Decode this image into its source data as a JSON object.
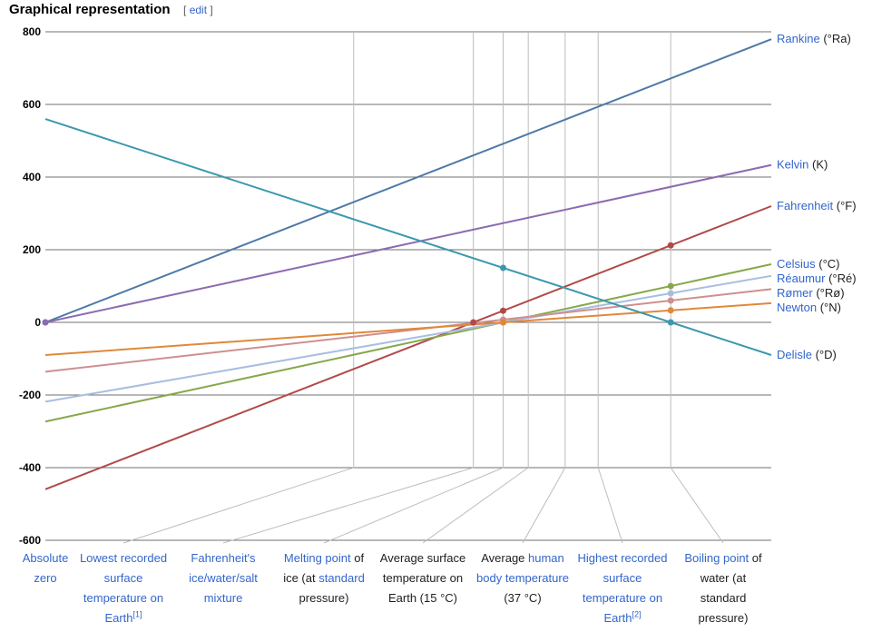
{
  "heading": {
    "title": "Graphical representation",
    "edit_open": "[",
    "edit_label": "edit",
    "edit_close": "]"
  },
  "chart_data": {
    "type": "line",
    "title": "Graphical representation",
    "xlabel": "",
    "ylabel": "",
    "ylim": [
      -600,
      800
    ],
    "yticks": [
      "800",
      "600",
      "400",
      "200",
      "0",
      "-200",
      "-400",
      "-600"
    ],
    "ytick_values": [
      800,
      600,
      400,
      200,
      0,
      -200,
      -400,
      -600
    ],
    "grid": true,
    "x_domain_celsius": [
      -273.15,
      160
    ],
    "categories": [
      {
        "celsius": -273.15,
        "parts": [
          {
            "t": "Absolute"
          },
          {
            "t": " zero"
          }
        ]
      },
      {
        "celsius": -89.2,
        "parts": [
          {
            "t": "Lowest recorded surface temperature on Earth"
          },
          {
            "t": "[1]",
            "sup": true
          }
        ]
      },
      {
        "celsius": -17.78,
        "parts": [
          {
            "t": "Fahrenheit's ice/water/salt mixture",
            "link": true
          }
        ]
      },
      {
        "celsius": 0,
        "parts": [
          {
            "t": "Melting point",
            "link": true
          },
          {
            "t": " of ice (at "
          },
          {
            "t": "standard",
            "link": true
          },
          {
            "t": " pressure)"
          }
        ]
      },
      {
        "celsius": 15,
        "parts": [
          {
            "t": "Average surface temperature on Earth (15 °C)"
          }
        ]
      },
      {
        "celsius": 37,
        "parts": [
          {
            "t": "Average "
          },
          {
            "t": "human body temperature",
            "link": true
          },
          {
            "t": " (37 °C)"
          }
        ]
      },
      {
        "celsius": 56.7,
        "parts": [
          {
            "t": "Highest recorded surface temperature on Earth",
            "link": true
          },
          {
            "t": "[2]",
            "sup": true
          }
        ]
      },
      {
        "celsius": 100,
        "parts": [
          {
            "t": "Boiling point",
            "link": true
          },
          {
            "t": " of water (at standard pressure)"
          }
        ]
      }
    ],
    "series": [
      {
        "name": "Rankine",
        "unit": "(°Ra)",
        "color": "#4e79a7",
        "slope": 1.8,
        "intercept": 491.67,
        "markers": [
          -273.15
        ]
      },
      {
        "name": "Kelvin",
        "unit": "(K)",
        "color": "#8c6bb1",
        "slope": 1,
        "intercept": 273.15,
        "markers": [
          -273.15
        ]
      },
      {
        "name": "Fahrenheit",
        "unit": "(°F)",
        "color": "#b04a49",
        "slope": 1.8,
        "intercept": 32,
        "markers": [
          -17.78,
          0,
          100
        ]
      },
      {
        "name": "Celsius",
        "unit": "(°C)",
        "color": "#86a84c",
        "slope": 1,
        "intercept": 0,
        "markers": [
          0,
          100
        ]
      },
      {
        "name": "Réaumur",
        "unit": "(°Ré)",
        "color": "#a8bde0",
        "slope": 0.8,
        "intercept": 0,
        "markers": [
          0,
          100
        ]
      },
      {
        "name": "Rømer",
        "unit": "(°Rø)",
        "color": "#cf8f8f",
        "slope": 0.525,
        "intercept": 7.5,
        "markers": [
          0,
          100
        ]
      },
      {
        "name": "Newton",
        "unit": "(°N)",
        "color": "#e0883a",
        "slope": 0.33,
        "intercept": 0,
        "markers": [
          0,
          100
        ]
      },
      {
        "name": "Delisle",
        "unit": "(°D)",
        "color": "#3c98ad",
        "slope": -1.5,
        "intercept": 150,
        "markers": [
          0,
          100
        ]
      }
    ]
  }
}
